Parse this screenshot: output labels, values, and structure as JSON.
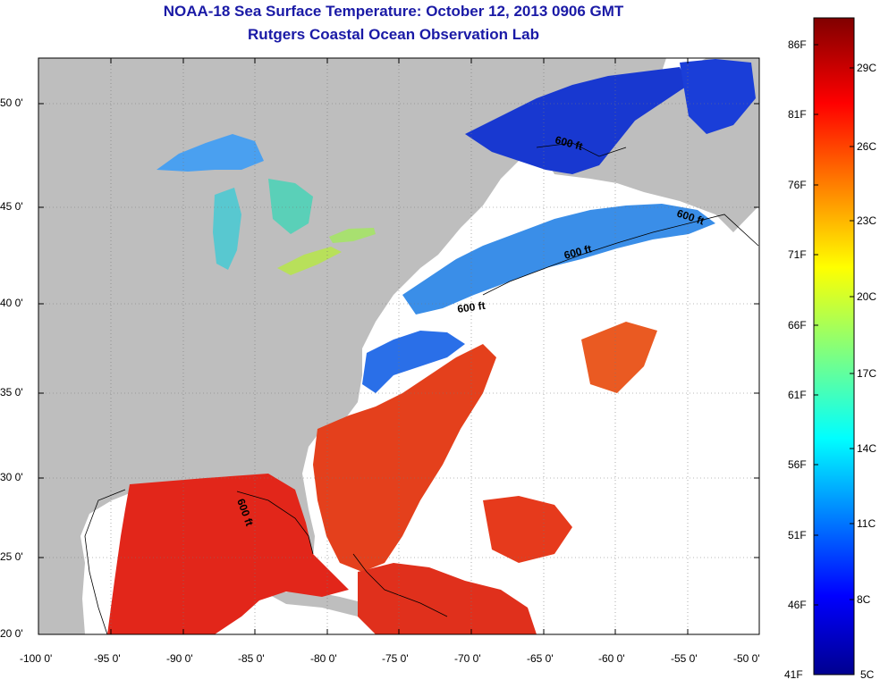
{
  "title": {
    "line1": "NOAA-18 Sea Surface Temperature:  October 12, 2013 0906 GMT",
    "line2": "Rutgers Coastal Ocean Observation Lab"
  },
  "colors": {
    "title": "#1a1aa6",
    "land": "#bebebe",
    "cloud": "#ffffff",
    "warm": "#e8281a",
    "cold": "#1030d0"
  },
  "map": {
    "lat_labels": [
      "50 0'",
      "45 0'",
      "40 0'",
      "35 0'",
      "30 0'",
      "25 0'",
      "20 0'"
    ],
    "lon_labels": [
      "-100 0'",
      "-95 0'",
      "-90 0'",
      "-85 0'",
      "-80 0'",
      "-75 0'",
      "-70 0'",
      "-65 0'",
      "-60 0'",
      "-55 0'",
      "-50 0'"
    ],
    "contour_label": "600 ft"
  },
  "colorbar": {
    "fahrenheit": [
      "86F",
      "81F",
      "76F",
      "71F",
      "66F",
      "61F",
      "56F",
      "51F",
      "46F",
      "41F"
    ],
    "celsius": [
      "29C",
      "26C",
      "23C",
      "20C",
      "17C",
      "14C",
      "11C",
      "8C",
      "5C"
    ]
  }
}
